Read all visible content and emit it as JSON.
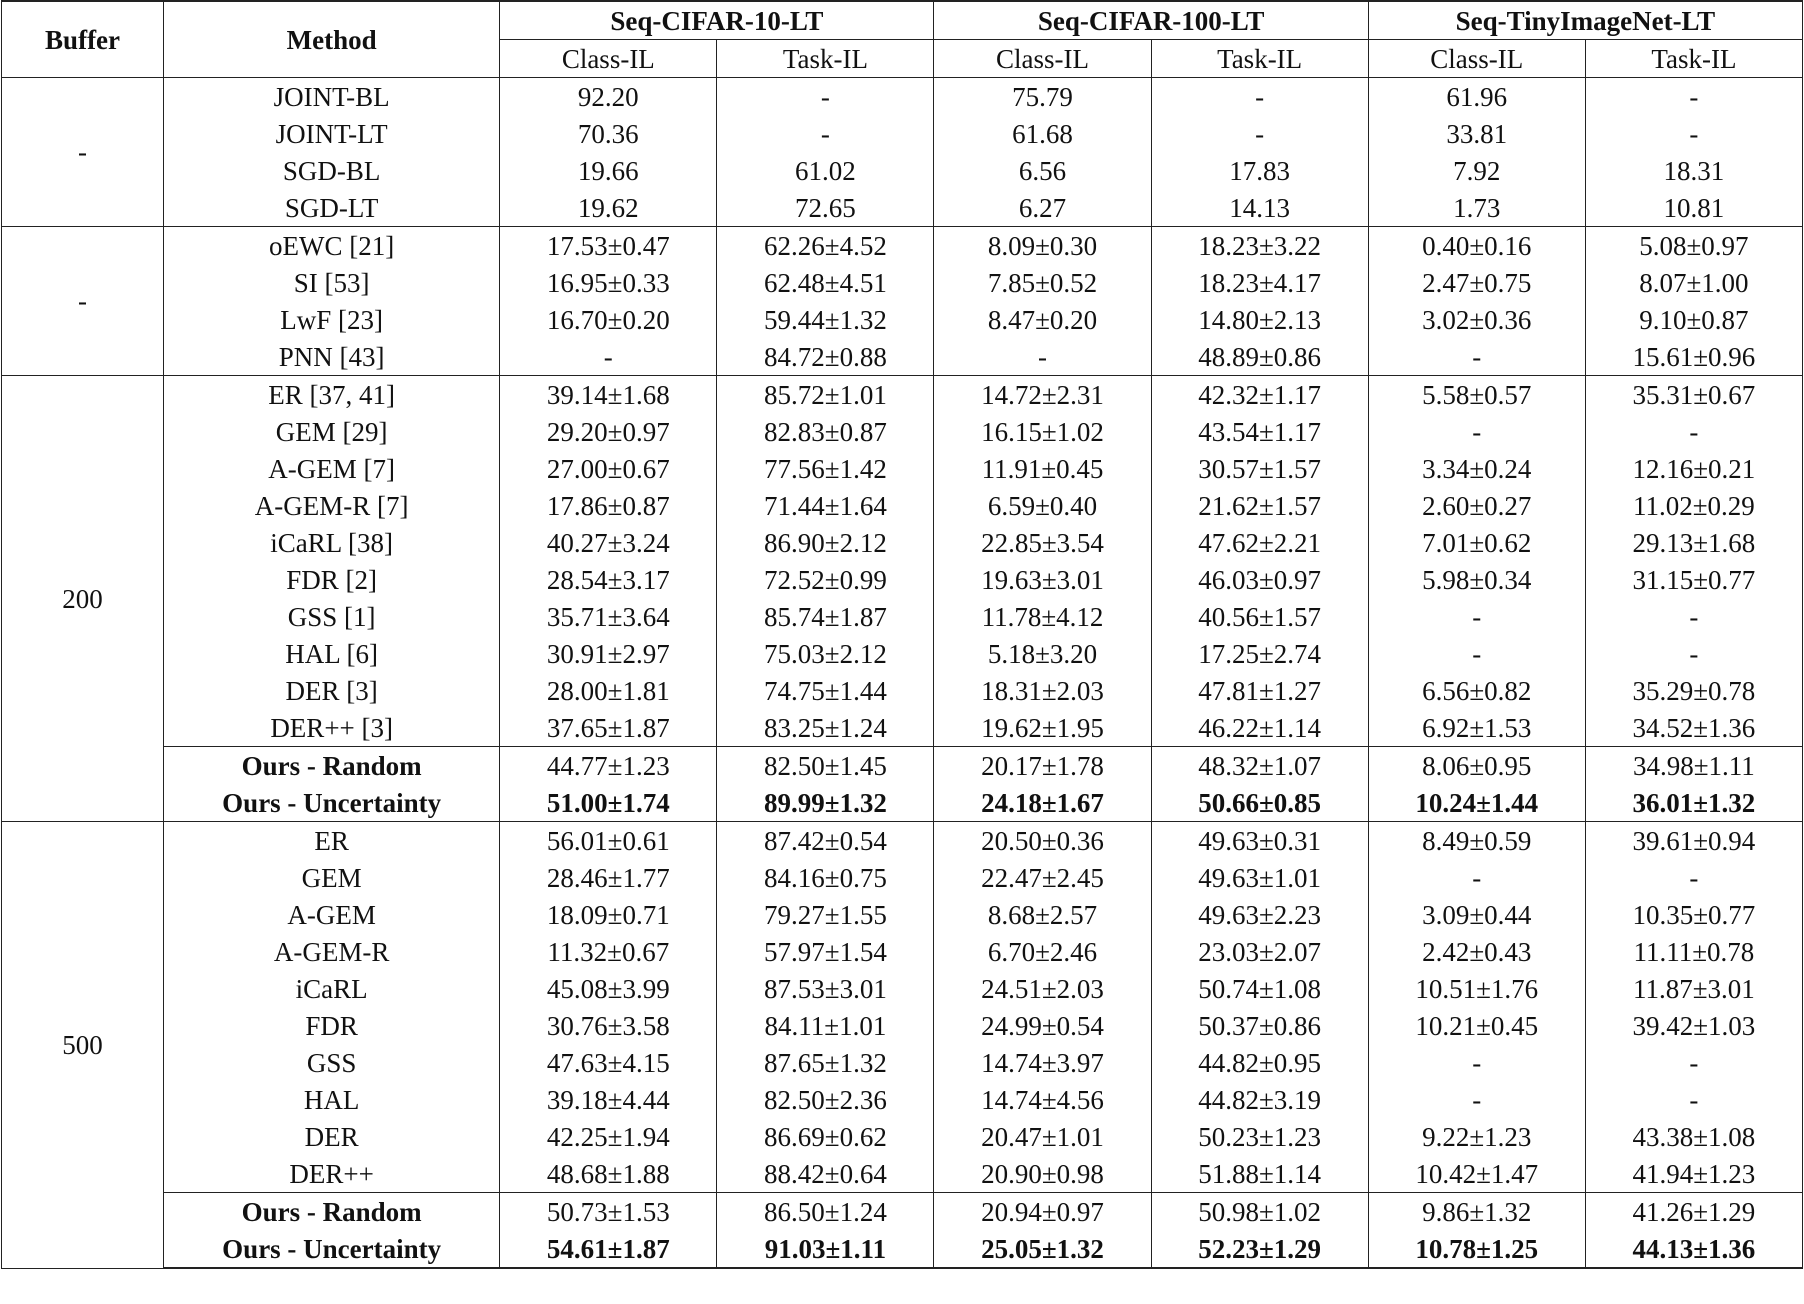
{
  "header": {
    "buffer": "Buffer",
    "method": "Method",
    "datasets": [
      "Seq-CIFAR-10-LT",
      "Seq-CIFAR-100-LT",
      "Seq-TinyImageNet-LT"
    ],
    "settings": [
      "Class-IL",
      "Task-IL"
    ]
  },
  "sections": [
    {
      "buffer": "-",
      "blocks": [
        {
          "rows": [
            {
              "method": "JOINT-BL",
              "cells": [
                "92.20",
                "-",
                "75.79",
                "-",
                "61.96",
                "-"
              ]
            },
            {
              "method": "JOINT-LT",
              "cells": [
                "70.36",
                "-",
                "61.68",
                "-",
                "33.81",
                "-"
              ]
            },
            {
              "method": "SGD-BL",
              "cells": [
                "19.66",
                "61.02",
                "6.56",
                "17.83",
                "7.92",
                "18.31"
              ]
            },
            {
              "method": "SGD-LT",
              "cells": [
                "19.62",
                "72.65",
                "6.27",
                "14.13",
                "1.73",
                "10.81"
              ]
            }
          ]
        }
      ]
    },
    {
      "buffer": "-",
      "blocks": [
        {
          "rows": [
            {
              "method": "oEWC [21]",
              "cells": [
                "17.53±0.47",
                "62.26±4.52",
                "8.09±0.30",
                "18.23±3.22",
                "0.40±0.16",
                "5.08±0.97"
              ]
            },
            {
              "method": "SI [53]",
              "cells": [
                "16.95±0.33",
                "62.48±4.51",
                "7.85±0.52",
                "18.23±4.17",
                "2.47±0.75",
                "8.07±1.00"
              ]
            },
            {
              "method": "LwF [23]",
              "cells": [
                "16.70±0.20",
                "59.44±1.32",
                "8.47±0.20",
                "14.80±2.13",
                "3.02±0.36",
                "9.10±0.87"
              ]
            },
            {
              "method": "PNN [43]",
              "cells": [
                "-",
                "84.72±0.88",
                "-",
                "48.89±0.86",
                "-",
                "15.61±0.96"
              ]
            }
          ]
        }
      ]
    },
    {
      "buffer": "200",
      "blocks": [
        {
          "rows": [
            {
              "method": "ER [37, 41]",
              "cells": [
                "39.14±1.68",
                "85.72±1.01",
                "14.72±2.31",
                "42.32±1.17",
                "5.58±0.57",
                "35.31±0.67"
              ]
            },
            {
              "method": "GEM [29]",
              "cells": [
                "29.20±0.97",
                "82.83±0.87",
                "16.15±1.02",
                "43.54±1.17",
                "-",
                "-"
              ]
            },
            {
              "method": "A-GEM [7]",
              "cells": [
                "27.00±0.67",
                "77.56±1.42",
                "11.91±0.45",
                "30.57±1.57",
                "3.34±0.24",
                "12.16±0.21"
              ]
            },
            {
              "method": "A-GEM-R [7]",
              "cells": [
                "17.86±0.87",
                "71.44±1.64",
                "6.59±0.40",
                "21.62±1.57",
                "2.60±0.27",
                "11.02±0.29"
              ]
            },
            {
              "method": "iCaRL [38]",
              "cells": [
                "40.27±3.24",
                "86.90±2.12",
                "22.85±3.54",
                "47.62±2.21",
                "7.01±0.62",
                "29.13±1.68"
              ]
            },
            {
              "method": "FDR [2]",
              "cells": [
                "28.54±3.17",
                "72.52±0.99",
                "19.63±3.01",
                "46.03±0.97",
                "5.98±0.34",
                "31.15±0.77"
              ]
            },
            {
              "method": "GSS [1]",
              "cells": [
                "35.71±3.64",
                "85.74±1.87",
                "11.78±4.12",
                "40.56±1.57",
                "-",
                "-"
              ]
            },
            {
              "method": "HAL [6]",
              "cells": [
                "30.91±2.97",
                "75.03±2.12",
                "5.18±3.20",
                "17.25±2.74",
                "-",
                "-"
              ]
            },
            {
              "method": "DER [3]",
              "cells": [
                "28.00±1.81",
                "74.75±1.44",
                "18.31±2.03",
                "47.81±1.27",
                "6.56±0.82",
                "35.29±0.78"
              ]
            },
            {
              "method": "DER++ [3]",
              "cells": [
                "37.65±1.87",
                "83.25±1.24",
                "19.62±1.95",
                "46.22±1.14",
                "6.92±1.53",
                "34.52±1.36"
              ]
            }
          ]
        },
        {
          "rows": [
            {
              "method": "Ours - Random",
              "emphasis": "method",
              "cells": [
                "44.77±1.23",
                "82.50±1.45",
                "20.17±1.78",
                "48.32±1.07",
                "8.06±0.95",
                "34.98±1.11"
              ]
            },
            {
              "method": "Ours - Uncertainty",
              "emphasis": "all",
              "cells": [
                "51.00±1.74",
                "89.99±1.32",
                "24.18±1.67",
                "50.66±0.85",
                "10.24±1.44",
                "36.01±1.32"
              ]
            }
          ]
        }
      ]
    },
    {
      "buffer": "500",
      "blocks": [
        {
          "rows": [
            {
              "method": "ER",
              "cells": [
                "56.01±0.61",
                "87.42±0.54",
                "20.50±0.36",
                "49.63±0.31",
                "8.49±0.59",
                "39.61±0.94"
              ]
            },
            {
              "method": "GEM",
              "cells": [
                "28.46±1.77",
                "84.16±0.75",
                "22.47±2.45",
                "49.63±1.01",
                "-",
                "-"
              ]
            },
            {
              "method": "A-GEM",
              "cells": [
                "18.09±0.71",
                "79.27±1.55",
                "8.68±2.57",
                "49.63±2.23",
                "3.09±0.44",
                "10.35±0.77"
              ]
            },
            {
              "method": "A-GEM-R",
              "cells": [
                "11.32±0.67",
                "57.97±1.54",
                "6.70±2.46",
                "23.03±2.07",
                "2.42±0.43",
                "11.11±0.78"
              ]
            },
            {
              "method": "iCaRL",
              "cells": [
                "45.08±3.99",
                "87.53±3.01",
                "24.51±2.03",
                "50.74±1.08",
                "10.51±1.76",
                "11.87±3.01"
              ]
            },
            {
              "method": "FDR",
              "cells": [
                "30.76±3.58",
                "84.11±1.01",
                "24.99±0.54",
                "50.37±0.86",
                "10.21±0.45",
                "39.42±1.03"
              ]
            },
            {
              "method": "GSS",
              "cells": [
                "47.63±4.15",
                "87.65±1.32",
                "14.74±3.97",
                "44.82±0.95",
                "-",
                "-"
              ]
            },
            {
              "method": "HAL",
              "cells": [
                "39.18±4.44",
                "82.50±2.36",
                "14.74±4.56",
                "44.82±3.19",
                "-",
                "-"
              ]
            },
            {
              "method": "DER",
              "cells": [
                "42.25±1.94",
                "86.69±0.62",
                "20.47±1.01",
                "50.23±1.23",
                "9.22±1.23",
                "43.38±1.08"
              ]
            },
            {
              "method": "DER++",
              "cells": [
                "48.68±1.88",
                "88.42±0.64",
                "20.90±0.98",
                "51.88±1.14",
                "10.42±1.47",
                "41.94±1.23"
              ]
            }
          ]
        },
        {
          "rows": [
            {
              "method": "Ours - Random",
              "emphasis": "method",
              "cells": [
                "50.73±1.53",
                "86.50±1.24",
                "20.94±0.97",
                "50.98±1.02",
                "9.86±1.32",
                "41.26±1.29"
              ]
            },
            {
              "method": "Ours - Uncertainty",
              "emphasis": "all",
              "cells": [
                "54.61±1.87",
                "91.03±1.11",
                "25.05±1.32",
                "52.23±1.29",
                "10.78±1.25",
                "44.13±1.36"
              ]
            }
          ]
        }
      ]
    }
  ]
}
